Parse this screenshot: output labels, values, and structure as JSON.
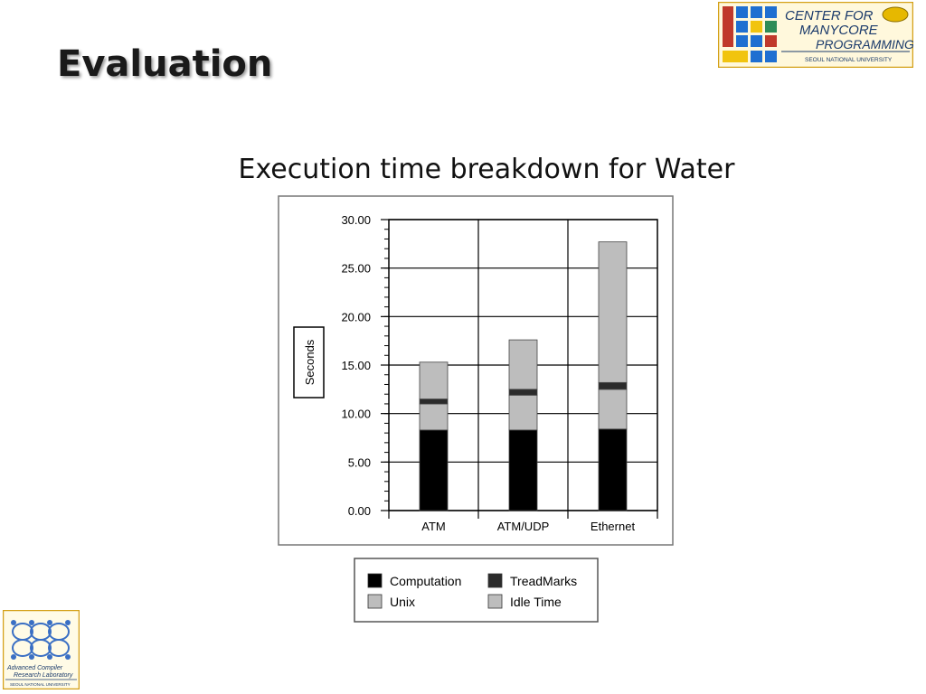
{
  "slide": {
    "title": "Evaluation"
  },
  "logos": {
    "top_right": {
      "line1": "CENTER FOR",
      "line2": "MANYCORE",
      "line3": "PROGRAMMING",
      "sub": "SEOUL NATIONAL UNIVERSITY"
    },
    "bottom_left": {
      "line1": "Advanced Compiler",
      "line2": "Research Laboratory",
      "sub": "SEOUL NATIONAL UNIVERSITY"
    }
  },
  "chart_data": {
    "type": "bar",
    "stacked": true,
    "title": "Execution time breakdown for Water",
    "ylabel": "Seconds",
    "xlabel": "",
    "ylim": [
      0,
      30
    ],
    "yticks": [
      "0.00",
      "5.00",
      "10.00",
      "15.00",
      "20.00",
      "25.00",
      "30.00"
    ],
    "grid": true,
    "legend_position": "bottom",
    "categories": [
      "ATM",
      "ATM/UDP",
      "Ethernet"
    ],
    "series": [
      {
        "name": "Computation",
        "color": "#000000",
        "values": [
          8.3,
          8.3,
          8.4
        ]
      },
      {
        "name": "Unix",
        "color": "#bdbdbd",
        "values": [
          2.7,
          3.6,
          4.1
        ]
      },
      {
        "name": "TreadMarks",
        "color": "#2b2b2b",
        "values": [
          0.5,
          0.6,
          0.7
        ]
      },
      {
        "name": "Idle Time",
        "color": "#bdbdbd",
        "values": [
          3.8,
          5.1,
          14.5
        ]
      }
    ],
    "legend_order": [
      "Computation",
      "TreadMarks",
      "Unix",
      "Idle Time"
    ]
  }
}
